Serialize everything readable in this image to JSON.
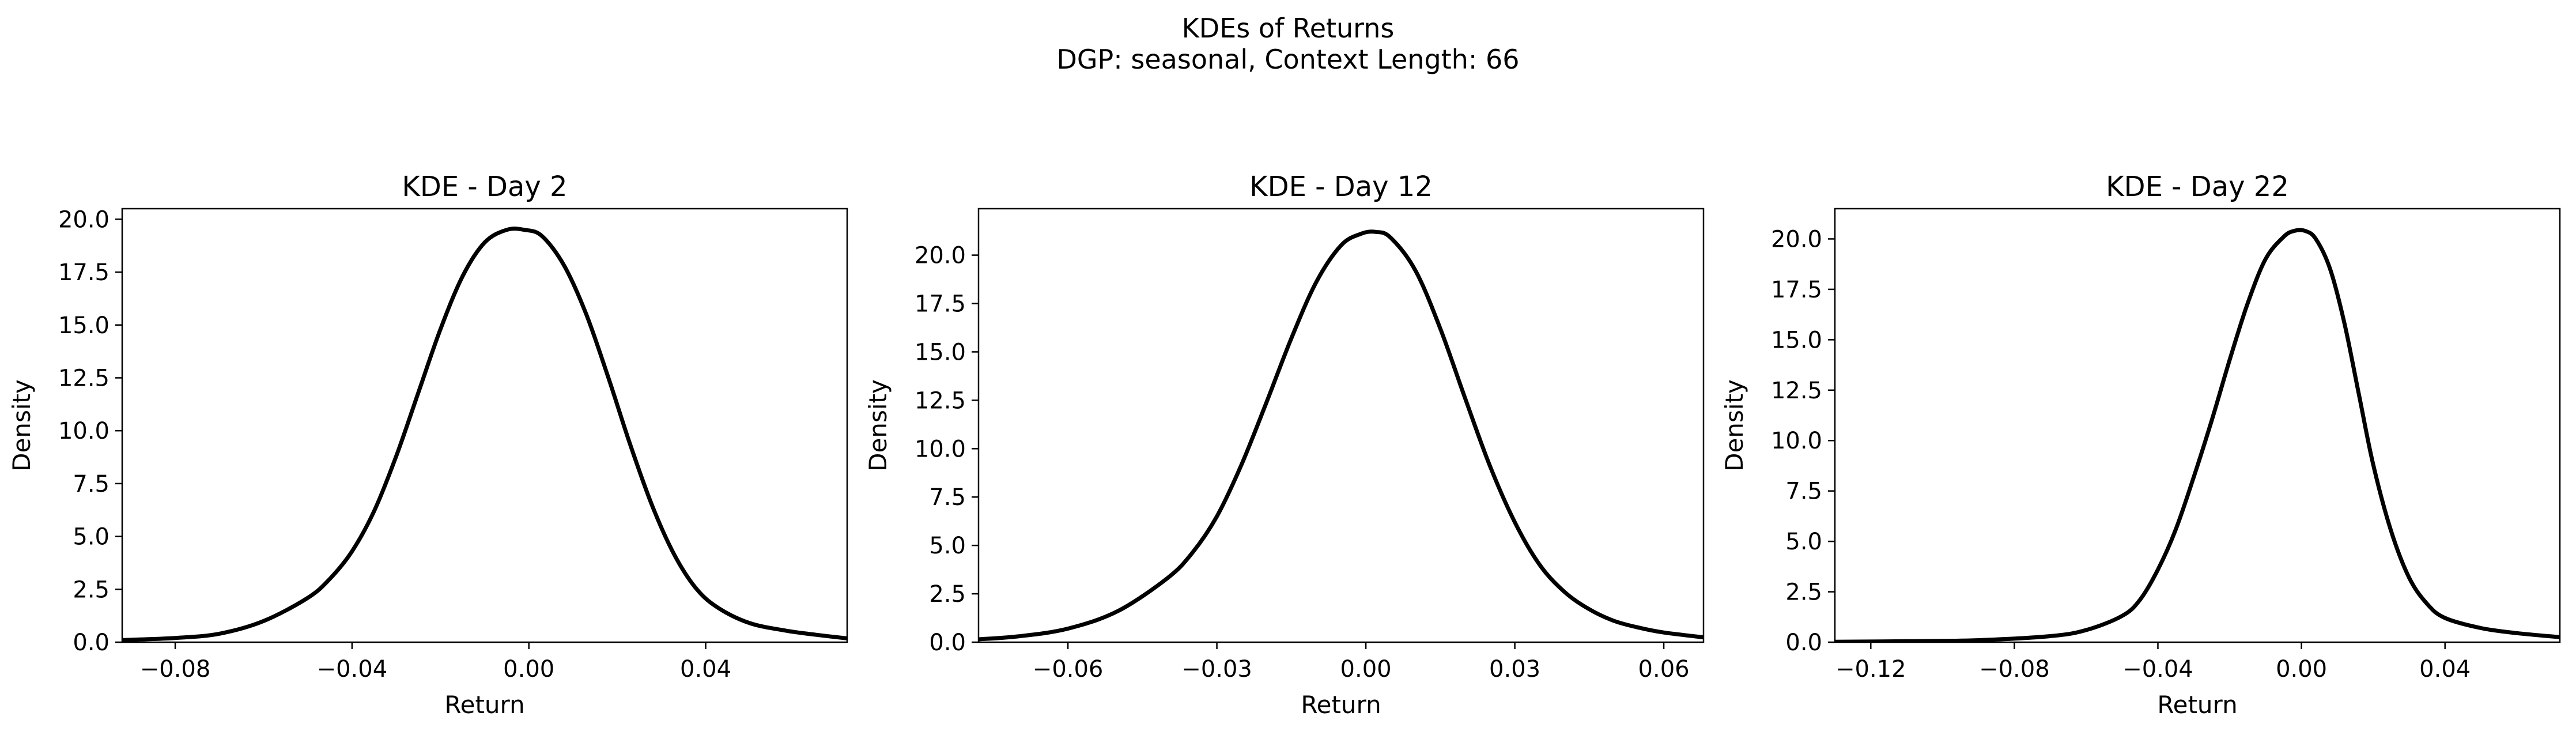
{
  "figure": {
    "title_line1": "KDEs of Returns",
    "title_line2": "DGP: seasonal, Context Length: 66"
  },
  "chart_data": [
    {
      "type": "line",
      "title": "KDE - Day 2",
      "xlabel": "Return",
      "ylabel": "Density",
      "xlim": [
        -0.092,
        0.072
      ],
      "ylim": [
        0,
        20.5
      ],
      "xticks": [
        -0.08,
        -0.04,
        0.0,
        0.04
      ],
      "xtick_labels": [
        "−0.08",
        "−0.04",
        "0.00",
        "0.04"
      ],
      "yticks": [
        0,
        2.5,
        5,
        7.5,
        10,
        12.5,
        15,
        17.5,
        20
      ],
      "ytick_labels": [
        "0.0",
        "2.5",
        "5.0",
        "7.5",
        "10.0",
        "12.5",
        "15.0",
        "17.5",
        "20.0"
      ],
      "series": [
        {
          "color": "#000000",
          "x": [
            -0.092,
            -0.08,
            -0.07,
            -0.06,
            -0.05,
            -0.045,
            -0.04,
            -0.035,
            -0.03,
            -0.025,
            -0.02,
            -0.015,
            -0.01,
            -0.005,
            -0.001,
            0.003,
            0.008,
            0.013,
            0.018,
            0.023,
            0.028,
            0.033,
            0.038,
            0.043,
            0.05,
            0.058,
            0.065,
            0.072
          ],
          "y": [
            0.1,
            0.2,
            0.4,
            1.0,
            2.1,
            3.0,
            4.3,
            6.2,
            8.8,
            11.8,
            14.8,
            17.3,
            18.9,
            19.5,
            19.5,
            19.2,
            17.8,
            15.5,
            12.5,
            9.3,
            6.4,
            4.1,
            2.5,
            1.6,
            0.9,
            0.55,
            0.35,
            0.18
          ]
        }
      ]
    },
    {
      "type": "line",
      "title": "KDE - Day 12",
      "xlabel": "Return",
      "ylabel": "Density",
      "xlim": [
        -0.078,
        0.068
      ],
      "ylim": [
        0,
        22.4
      ],
      "xticks": [
        -0.06,
        -0.03,
        0.0,
        0.03,
        0.06
      ],
      "xtick_labels": [
        "−0.06",
        "−0.03",
        "0.00",
        "0.03",
        "0.06"
      ],
      "yticks": [
        0,
        2.5,
        5,
        7.5,
        10,
        12.5,
        15,
        17.5,
        20
      ],
      "ytick_labels": [
        "0.0",
        "2.5",
        "5.0",
        "7.5",
        "10.0",
        "12.5",
        "15.0",
        "17.5",
        "20.0"
      ],
      "series": [
        {
          "color": "#000000",
          "x": [
            -0.078,
            -0.07,
            -0.06,
            -0.05,
            -0.04,
            -0.035,
            -0.03,
            -0.025,
            -0.02,
            -0.015,
            -0.01,
            -0.005,
            -0.001,
            0.002,
            0.005,
            0.01,
            0.015,
            0.02,
            0.025,
            0.03,
            0.035,
            0.04,
            0.045,
            0.05,
            0.055,
            0.06,
            0.068
          ],
          "y": [
            0.15,
            0.3,
            0.7,
            1.6,
            3.3,
            4.6,
            6.5,
            9.2,
            12.4,
            15.7,
            18.6,
            20.5,
            21.1,
            21.2,
            20.9,
            19.2,
            16.2,
            12.6,
            9.1,
            6.2,
            4.0,
            2.6,
            1.7,
            1.1,
            0.75,
            0.5,
            0.25
          ]
        }
      ]
    },
    {
      "type": "line",
      "title": "KDE - Day 22",
      "xlabel": "Return",
      "ylabel": "Density",
      "xlim": [
        -0.13,
        0.072
      ],
      "ylim": [
        0,
        21.5
      ],
      "xticks": [
        -0.12,
        -0.08,
        -0.04,
        0.0,
        0.04
      ],
      "xtick_labels": [
        "−0.12",
        "−0.08",
        "−0.04",
        "0.00",
        "0.04"
      ],
      "yticks": [
        0,
        2.5,
        5,
        7.5,
        10,
        12.5,
        15,
        17.5,
        20
      ],
      "ytick_labels": [
        "0.0",
        "2.5",
        "5.0",
        "7.5",
        "10.0",
        "12.5",
        "15.0",
        "17.5",
        "20.0"
      ],
      "series": [
        {
          "color": "#000000",
          "x": [
            -0.13,
            -0.11,
            -0.09,
            -0.07,
            -0.06,
            -0.05,
            -0.045,
            -0.04,
            -0.035,
            -0.03,
            -0.025,
            -0.02,
            -0.015,
            -0.01,
            -0.005,
            -0.002,
            0.001,
            0.004,
            0.008,
            0.012,
            0.016,
            0.02,
            0.025,
            0.03,
            0.035,
            0.04,
            0.05,
            0.06,
            0.072
          ],
          "y": [
            0.02,
            0.05,
            0.1,
            0.3,
            0.6,
            1.3,
            2.1,
            3.6,
            5.6,
            8.2,
            11.0,
            14.0,
            16.8,
            19.0,
            20.1,
            20.4,
            20.4,
            20.0,
            18.5,
            15.8,
            12.3,
            8.8,
            5.5,
            3.2,
            1.9,
            1.2,
            0.7,
            0.45,
            0.25
          ]
        }
      ]
    }
  ]
}
